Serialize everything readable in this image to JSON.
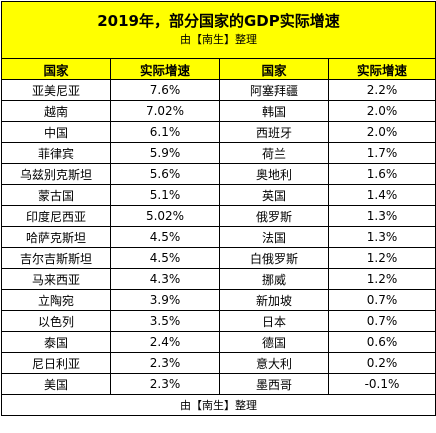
{
  "title": "2019年，部分国家的GDP实际增速",
  "subtitle": "由【南生】整理",
  "headers": [
    "国家",
    "实际增速",
    "国家",
    "实际增速"
  ],
  "rows": [
    [
      "亚美尼亚",
      "7.6%",
      "阿塞拜疆",
      "2.2%"
    ],
    [
      "越南",
      "7.02%",
      "韩国",
      "2.0%"
    ],
    [
      "中国",
      "6.1%",
      "西班牙",
      "2.0%"
    ],
    [
      "菲律宾",
      "5.9%",
      "荷兰",
      "1.7%"
    ],
    [
      "乌兹别克斯坦",
      "5.6%",
      "奥地利",
      "1.6%"
    ],
    [
      "蒙古国",
      "5.1%",
      "英国",
      "1.4%"
    ],
    [
      "印度尼西亚",
      "5.02%",
      "俄罗斯",
      "1.3%"
    ],
    [
      "哈萨克斯坦",
      "4.5%",
      "法国",
      "1.3%"
    ],
    [
      "吉尔吉斯斯坦",
      "4.5%",
      "白俄罗斯",
      "1.2%"
    ],
    [
      "马来西亚",
      "4.3%",
      "挪威",
      "1.2%"
    ],
    [
      "立陶宛",
      "3.9%",
      "新加坡",
      "0.7%"
    ],
    [
      "以色列",
      "3.5%",
      "日本",
      "0.7%"
    ],
    [
      "泰国",
      "2.4%",
      "德国",
      "0.6%"
    ],
    [
      "尼日利亚",
      "2.3%",
      "意大利",
      "0.2%"
    ],
    [
      "美国",
      "2.3%",
      "墨西哥",
      "-0.1%"
    ]
  ],
  "footer": "由【南生】整理"
}
